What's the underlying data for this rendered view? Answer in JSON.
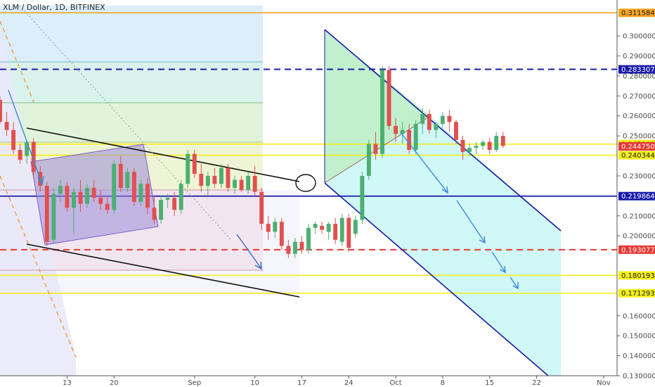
{
  "title": "XLM / Dollar, 1D, BITFINEX",
  "chart_data": {
    "type": "candlestick",
    "title": "XLM / Dollar, 1D, BITFINEX",
    "ylim": [
      0.13,
      0.318
    ],
    "x_range": [
      "2018-08-03",
      "2018-11-03"
    ],
    "y_ticks": [
      {
        "value": 0.3,
        "label": "0.30000000"
      },
      {
        "value": 0.29,
        "label": "0.29000000"
      },
      {
        "value": 0.28,
        "label": "0.28000000"
      },
      {
        "value": 0.27,
        "label": "0.27000000"
      },
      {
        "value": 0.26,
        "label": "0.26000000"
      },
      {
        "value": 0.25,
        "label": "0.25000000"
      },
      {
        "value": 0.23,
        "label": "0.23000000"
      },
      {
        "value": 0.21,
        "label": "0.21000000"
      },
      {
        "value": 0.2,
        "label": "0.20000000"
      },
      {
        "value": 0.16,
        "label": "0.16000000"
      },
      {
        "value": 0.15,
        "label": "0.15000000"
      },
      {
        "value": 0.14,
        "label": "0.14000000"
      },
      {
        "value": 0.13,
        "label": "0.13000000"
      }
    ],
    "x_ticks": [
      {
        "date": "2018-08-13",
        "label": "13"
      },
      {
        "date": "2018-08-20",
        "label": "20"
      },
      {
        "date": "2018-09-01",
        "label": "Sep"
      },
      {
        "date": "2018-09-10",
        "label": "10"
      },
      {
        "date": "2018-09-17",
        "label": "17"
      },
      {
        "date": "2018-09-24",
        "label": "24"
      },
      {
        "date": "2018-10-01",
        "label": "Oct"
      },
      {
        "date": "2018-10-08",
        "label": "8"
      },
      {
        "date": "2018-10-15",
        "label": "15"
      },
      {
        "date": "2018-10-22",
        "label": "22"
      },
      {
        "date": "2018-11-01",
        "label": "Nov"
      }
    ],
    "price_labels": [
      {
        "value": 0.31158481,
        "label": "0.31158481",
        "color": "#f5a623",
        "text_color": "#222222",
        "style": "solid"
      },
      {
        "value": 0.283307,
        "label": "0.28330700",
        "color": "#1a1aa8",
        "text_color": "#ffffff",
        "style": "dashed"
      },
      {
        "value": 0.24590889,
        "label": "0.24590889",
        "color": "#f2ef1c",
        "text_color": "#222222",
        "style": "solid"
      },
      {
        "value": 0.24475,
        "label": "0.24475000",
        "color": "#e53935",
        "text_color": "#ffffff",
        "style": "none"
      },
      {
        "value": 0.24034475,
        "label": "0.24034475",
        "color": "#f2ef1c",
        "text_color": "#222222",
        "style": "solid"
      },
      {
        "value": 0.21986474,
        "label": "0.21986474",
        "color": "#1a1aa8",
        "text_color": "#ffffff",
        "style": "solid"
      },
      {
        "value": 0.19307775,
        "label": "0.19307775",
        "color": "#e53935",
        "text_color": "#ffffff",
        "style": "dashed"
      },
      {
        "value": 0.18019363,
        "label": "0.18019363",
        "color": "#f2ef1c",
        "text_color": "#222222",
        "style": "solid"
      },
      {
        "value": 0.17129303,
        "label": "0.17129303",
        "color": "#f2ef1c",
        "text_color": "#222222",
        "style": "solid"
      }
    ],
    "ohlc": [
      {
        "date": "2018-08-03",
        "open": 0.268,
        "high": 0.27,
        "low": 0.256,
        "close": 0.257
      },
      {
        "date": "2018-08-04",
        "open": 0.257,
        "high": 0.262,
        "low": 0.25,
        "close": 0.253
      },
      {
        "date": "2018-08-05",
        "open": 0.253,
        "high": 0.257,
        "low": 0.241,
        "close": 0.243
      },
      {
        "date": "2018-08-06",
        "open": 0.243,
        "high": 0.246,
        "low": 0.236,
        "close": 0.238
      },
      {
        "date": "2018-08-07",
        "open": 0.24,
        "high": 0.248,
        "low": 0.236,
        "close": 0.247
      },
      {
        "date": "2018-08-08",
        "open": 0.247,
        "high": 0.249,
        "low": 0.229,
        "close": 0.232
      },
      {
        "date": "2018-08-09",
        "open": 0.232,
        "high": 0.235,
        "low": 0.222,
        "close": 0.225
      },
      {
        "date": "2018-08-10",
        "open": 0.225,
        "high": 0.227,
        "low": 0.195,
        "close": 0.197
      },
      {
        "date": "2018-08-11",
        "open": 0.198,
        "high": 0.224,
        "low": 0.196,
        "close": 0.221
      },
      {
        "date": "2018-08-12",
        "open": 0.221,
        "high": 0.228,
        "low": 0.217,
        "close": 0.225
      },
      {
        "date": "2018-08-13",
        "open": 0.225,
        "high": 0.227,
        "low": 0.212,
        "close": 0.214
      },
      {
        "date": "2018-08-14",
        "open": 0.214,
        "high": 0.224,
        "low": 0.201,
        "close": 0.222
      },
      {
        "date": "2018-08-15",
        "open": 0.222,
        "high": 0.228,
        "low": 0.212,
        "close": 0.216
      },
      {
        "date": "2018-08-16",
        "open": 0.216,
        "high": 0.226,
        "low": 0.214,
        "close": 0.224
      },
      {
        "date": "2018-08-17",
        "open": 0.224,
        "high": 0.228,
        "low": 0.217,
        "close": 0.219
      },
      {
        "date": "2018-08-18",
        "open": 0.219,
        "high": 0.223,
        "low": 0.213,
        "close": 0.216
      },
      {
        "date": "2018-08-19",
        "open": 0.216,
        "high": 0.22,
        "low": 0.211,
        "close": 0.213
      },
      {
        "date": "2018-08-20",
        "open": 0.213,
        "high": 0.238,
        "low": 0.211,
        "close": 0.236
      },
      {
        "date": "2018-08-21",
        "open": 0.236,
        "high": 0.24,
        "low": 0.222,
        "close": 0.224
      },
      {
        "date": "2018-08-22",
        "open": 0.224,
        "high": 0.234,
        "low": 0.222,
        "close": 0.232
      },
      {
        "date": "2018-08-23",
        "open": 0.232,
        "high": 0.234,
        "low": 0.215,
        "close": 0.217
      },
      {
        "date": "2018-08-24",
        "open": 0.217,
        "high": 0.228,
        "low": 0.215,
        "close": 0.226
      },
      {
        "date": "2018-08-25",
        "open": 0.226,
        "high": 0.229,
        "low": 0.211,
        "close": 0.214
      },
      {
        "date": "2018-08-26",
        "open": 0.214,
        "high": 0.22,
        "low": 0.206,
        "close": 0.208
      },
      {
        "date": "2018-08-27",
        "open": 0.208,
        "high": 0.22,
        "low": 0.206,
        "close": 0.218
      },
      {
        "date": "2018-08-28",
        "open": 0.218,
        "high": 0.221,
        "low": 0.214,
        "close": 0.219
      },
      {
        "date": "2018-08-29",
        "open": 0.219,
        "high": 0.222,
        "low": 0.21,
        "close": 0.213
      },
      {
        "date": "2018-08-30",
        "open": 0.213,
        "high": 0.228,
        "low": 0.211,
        "close": 0.226
      },
      {
        "date": "2018-08-31",
        "open": 0.226,
        "high": 0.243,
        "low": 0.224,
        "close": 0.241
      },
      {
        "date": "2018-09-01",
        "open": 0.241,
        "high": 0.243,
        "low": 0.229,
        "close": 0.231
      },
      {
        "date": "2018-09-02",
        "open": 0.231,
        "high": 0.236,
        "low": 0.222,
        "close": 0.225
      },
      {
        "date": "2018-09-03",
        "open": 0.225,
        "high": 0.232,
        "low": 0.22,
        "close": 0.23
      },
      {
        "date": "2018-09-04",
        "open": 0.23,
        "high": 0.234,
        "low": 0.224,
        "close": 0.226
      },
      {
        "date": "2018-09-05",
        "open": 0.226,
        "high": 0.236,
        "low": 0.224,
        "close": 0.234
      },
      {
        "date": "2018-09-06",
        "open": 0.234,
        "high": 0.236,
        "low": 0.222,
        "close": 0.224
      },
      {
        "date": "2018-09-07",
        "open": 0.224,
        "high": 0.23,
        "low": 0.221,
        "close": 0.228
      },
      {
        "date": "2018-09-08",
        "open": 0.228,
        "high": 0.23,
        "low": 0.222,
        "close": 0.223
      },
      {
        "date": "2018-09-09",
        "open": 0.223,
        "high": 0.232,
        "low": 0.221,
        "close": 0.23
      },
      {
        "date": "2018-09-10",
        "open": 0.23,
        "high": 0.235,
        "low": 0.22,
        "close": 0.222
      },
      {
        "date": "2018-09-11",
        "open": 0.222,
        "high": 0.224,
        "low": 0.203,
        "close": 0.206
      },
      {
        "date": "2018-09-12",
        "open": 0.206,
        "high": 0.21,
        "low": 0.198,
        "close": 0.202
      },
      {
        "date": "2018-09-13",
        "open": 0.202,
        "high": 0.209,
        "low": 0.199,
        "close": 0.207
      },
      {
        "date": "2018-09-14",
        "open": 0.207,
        "high": 0.209,
        "low": 0.193,
        "close": 0.195
      },
      {
        "date": "2018-09-15",
        "open": 0.195,
        "high": 0.198,
        "low": 0.189,
        "close": 0.191
      },
      {
        "date": "2018-09-16",
        "open": 0.191,
        "high": 0.199,
        "low": 0.189,
        "close": 0.197
      },
      {
        "date": "2018-09-17",
        "open": 0.197,
        "high": 0.2,
        "low": 0.191,
        "close": 0.193
      },
      {
        "date": "2018-09-18",
        "open": 0.193,
        "high": 0.206,
        "low": 0.191,
        "close": 0.204
      },
      {
        "date": "2018-09-19",
        "open": 0.204,
        "high": 0.207,
        "low": 0.201,
        "close": 0.206
      },
      {
        "date": "2018-09-20",
        "open": 0.205,
        "high": 0.207,
        "low": 0.201,
        "close": 0.203
      },
      {
        "date": "2018-09-21",
        "open": 0.202,
        "high": 0.207,
        "low": 0.198,
        "close": 0.206
      },
      {
        "date": "2018-09-22",
        "open": 0.206,
        "high": 0.209,
        "low": 0.196,
        "close": 0.198
      },
      {
        "date": "2018-09-23",
        "open": 0.197,
        "high": 0.211,
        "low": 0.195,
        "close": 0.209
      },
      {
        "date": "2018-09-24",
        "open": 0.209,
        "high": 0.211,
        "low": 0.192,
        "close": 0.194
      },
      {
        "date": "2018-09-25",
        "open": 0.201,
        "high": 0.21,
        "low": 0.199,
        "close": 0.208
      },
      {
        "date": "2018-09-26",
        "open": 0.208,
        "high": 0.232,
        "low": 0.206,
        "close": 0.23
      },
      {
        "date": "2018-09-27",
        "open": 0.23,
        "high": 0.248,
        "low": 0.228,
        "close": 0.246
      },
      {
        "date": "2018-09-28",
        "open": 0.246,
        "high": 0.252,
        "low": 0.238,
        "close": 0.241
      },
      {
        "date": "2018-09-29",
        "open": 0.241,
        "high": 0.285,
        "low": 0.239,
        "close": 0.283
      },
      {
        "date": "2018-09-30",
        "open": 0.283,
        "high": 0.285,
        "low": 0.253,
        "close": 0.255
      },
      {
        "date": "2018-10-01",
        "open": 0.255,
        "high": 0.259,
        "low": 0.247,
        "close": 0.251
      },
      {
        "date": "2018-10-02",
        "open": 0.251,
        "high": 0.257,
        "low": 0.246,
        "close": 0.253
      },
      {
        "date": "2018-10-03",
        "open": 0.253,
        "high": 0.256,
        "low": 0.241,
        "close": 0.243
      },
      {
        "date": "2018-10-04",
        "open": 0.243,
        "high": 0.258,
        "low": 0.241,
        "close": 0.256
      },
      {
        "date": "2018-10-05",
        "open": 0.256,
        "high": 0.264,
        "low": 0.251,
        "close": 0.261
      },
      {
        "date": "2018-10-06",
        "open": 0.261,
        "high": 0.263,
        "low": 0.251,
        "close": 0.253
      },
      {
        "date": "2018-10-07",
        "open": 0.253,
        "high": 0.257,
        "low": 0.249,
        "close": 0.256
      },
      {
        "date": "2018-10-08",
        "open": 0.256,
        "high": 0.262,
        "low": 0.254,
        "close": 0.26
      },
      {
        "date": "2018-10-09",
        "open": 0.26,
        "high": 0.263,
        "low": 0.252,
        "close": 0.257
      },
      {
        "date": "2018-10-10",
        "open": 0.257,
        "high": 0.258,
        "low": 0.246,
        "close": 0.248
      },
      {
        "date": "2018-10-11",
        "open": 0.248,
        "high": 0.25,
        "low": 0.238,
        "close": 0.242
      },
      {
        "date": "2018-10-12",
        "open": 0.242,
        "high": 0.246,
        "low": 0.24,
        "close": 0.244
      },
      {
        "date": "2018-10-13",
        "open": 0.244,
        "high": 0.247,
        "low": 0.241,
        "close": 0.245
      },
      {
        "date": "2018-10-14",
        "open": 0.245,
        "high": 0.248,
        "low": 0.243,
        "close": 0.247
      },
      {
        "date": "2018-10-15",
        "open": 0.247,
        "high": 0.249,
        "low": 0.241,
        "close": 0.243
      },
      {
        "date": "2018-10-16",
        "open": 0.243,
        "high": 0.252,
        "low": 0.242,
        "close": 0.25
      },
      {
        "date": "2018-10-17",
        "open": 0.25,
        "high": 0.252,
        "low": 0.244,
        "close": 0.245
      }
    ]
  }
}
